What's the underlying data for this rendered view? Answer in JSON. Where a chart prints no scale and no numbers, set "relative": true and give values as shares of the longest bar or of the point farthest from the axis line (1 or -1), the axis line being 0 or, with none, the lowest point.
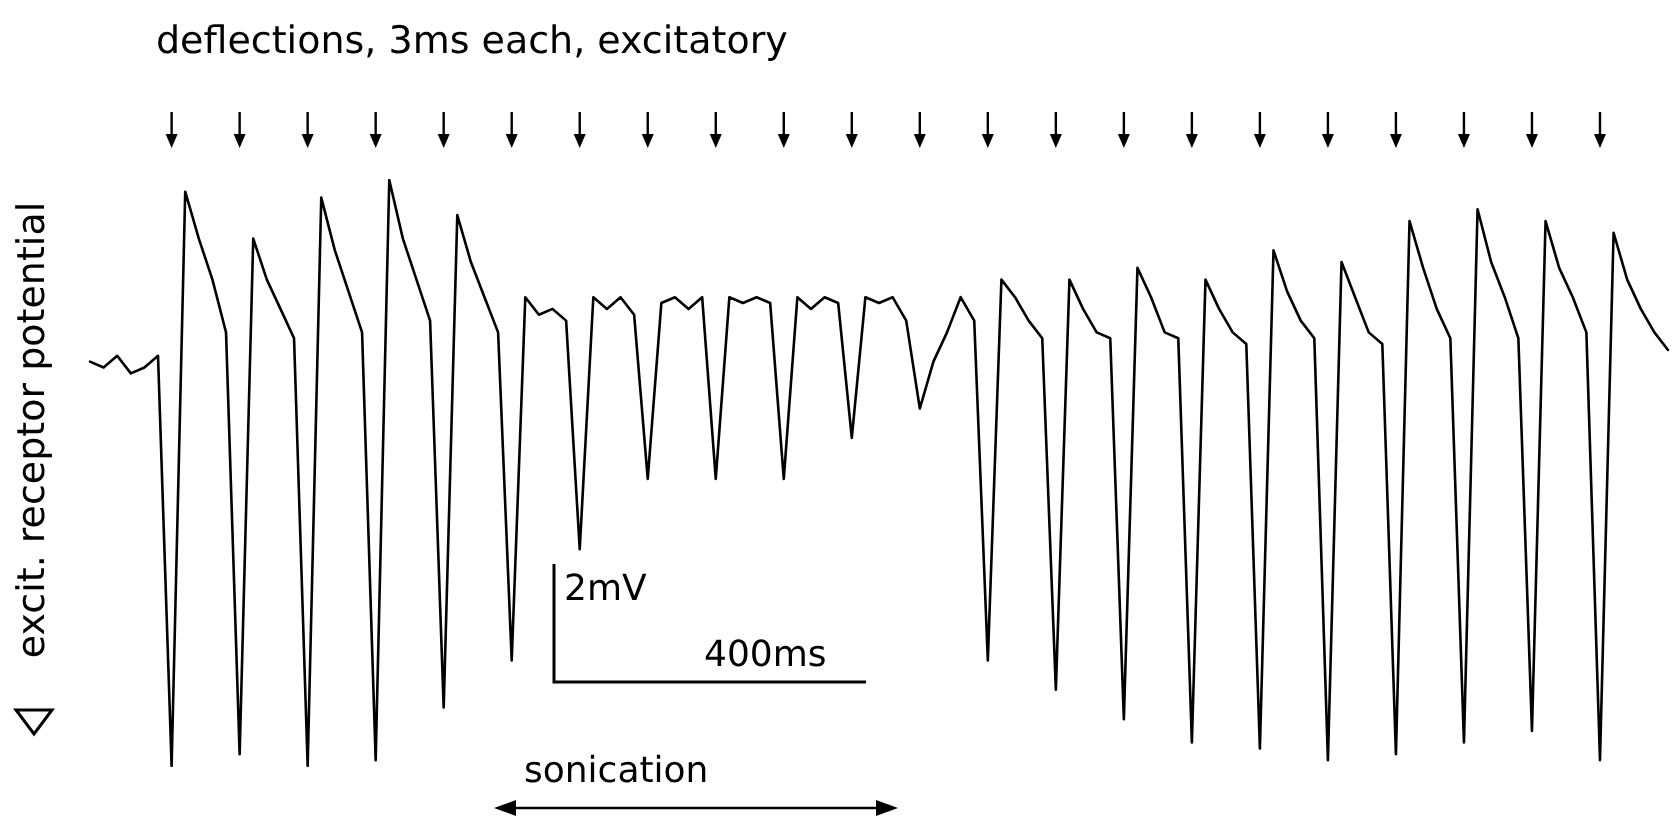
{
  "chart_data": {
    "type": "line",
    "relative": true,
    "title": "deflections, 3ms each, excitatory",
    "ylabel": "excit. receptor potential",
    "annotations": [
      "2mV",
      "400ms",
      "sonication"
    ],
    "categories": [
      null,
      null,
      null,
      null,
      null,
      null,
      null,
      null,
      null,
      null,
      null,
      null,
      null,
      null,
      null,
      null,
      null,
      null,
      null,
      null,
      null,
      null,
      null,
      null,
      null,
      null,
      null,
      null,
      null,
      null,
      null,
      null,
      null,
      null,
      null,
      null,
      null,
      null,
      null,
      null,
      null,
      null,
      null,
      null,
      null,
      null,
      null,
      null,
      null,
      null,
      null,
      null,
      null,
      null,
      null,
      null,
      null,
      null,
      null,
      null,
      null,
      null,
      null,
      null,
      null,
      null,
      null,
      null,
      null,
      null,
      null,
      null,
      null,
      null,
      null,
      null,
      null,
      null,
      null,
      null,
      null,
      null,
      null,
      null,
      null,
      null,
      null,
      null,
      null,
      null,
      null,
      null,
      null,
      null,
      null,
      null,
      null,
      null,
      null,
      null,
      null,
      null,
      null,
      null,
      null,
      null,
      null,
      null,
      null,
      null,
      null,
      null,
      null,
      null,
      null,
      null,
      null
    ],
    "series": [
      {
        "color": "#000000",
        "values": [
          0.69,
          0.68,
          0.7,
          0.67,
          0.68,
          0.7,
          0.0,
          0.98,
          0.9,
          0.83,
          0.74,
          0.02,
          0.9,
          0.83,
          0.78,
          0.73,
          0.0,
          0.97,
          0.88,
          0.81,
          0.74,
          0.01,
          1.0,
          0.9,
          0.83,
          0.76,
          0.1,
          0.94,
          0.86,
          0.8,
          0.74,
          0.18,
          0.8,
          0.77,
          0.78,
          0.76,
          0.37,
          0.8,
          0.78,
          0.8,
          0.77,
          0.49,
          0.79,
          0.8,
          0.78,
          0.8,
          0.49,
          0.8,
          0.79,
          0.8,
          0.79,
          0.49,
          0.8,
          0.78,
          0.8,
          0.79,
          0.56,
          0.8,
          0.79,
          0.8,
          0.76,
          0.61,
          0.69,
          0.74,
          0.8,
          0.76,
          0.18,
          0.83,
          0.8,
          0.76,
          0.73,
          0.13,
          0.83,
          0.78,
          0.74,
          0.73,
          0.08,
          0.85,
          0.8,
          0.74,
          0.73,
          0.04,
          0.83,
          0.78,
          0.74,
          0.72,
          0.03,
          0.88,
          0.81,
          0.76,
          0.73,
          0.01,
          0.86,
          0.8,
          0.74,
          0.72,
          0.02,
          0.93,
          0.85,
          0.78,
          0.73,
          0.04,
          0.95,
          0.86,
          0.8,
          0.73,
          0.06,
          0.93,
          0.85,
          0.8,
          0.74,
          0.01,
          0.91,
          0.83,
          0.78,
          0.74,
          0.71
        ]
      }
    ],
    "grid": false,
    "line_style": "solid"
  }
}
